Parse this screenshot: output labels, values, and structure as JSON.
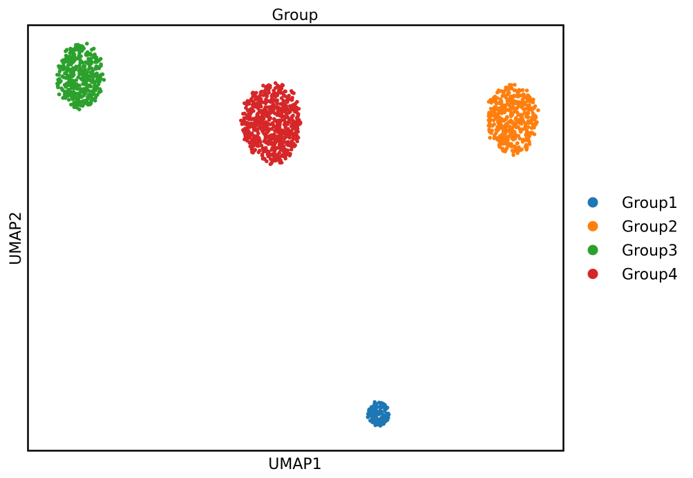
{
  "chart_data": {
    "type": "scatter",
    "title": "Group",
    "xlabel": "UMAP1",
    "ylabel": "UMAP2",
    "xlim": [
      0,
      10
    ],
    "ylim": [
      0,
      10
    ],
    "ticks_visible": false,
    "grid": false,
    "legend_position": "right",
    "series": [
      {
        "name": "Group1",
        "color": "#1f77b4",
        "points": 120,
        "center": [
          6.55,
          0.85
        ],
        "spread": [
          0.23,
          0.32
        ]
      },
      {
        "name": "Group2",
        "color": "#ff7f0e",
        "points": 450,
        "center": [
          9.05,
          7.8
        ],
        "spread": [
          0.5,
          0.88
        ]
      },
      {
        "name": "Group3",
        "color": "#2ca02c",
        "points": 380,
        "center": [
          0.97,
          8.8
        ],
        "spread": [
          0.47,
          0.82
        ]
      },
      {
        "name": "Group4",
        "color": "#d62728",
        "points": 650,
        "center": [
          4.55,
          7.7
        ],
        "spread": [
          0.6,
          1.0
        ]
      }
    ]
  }
}
